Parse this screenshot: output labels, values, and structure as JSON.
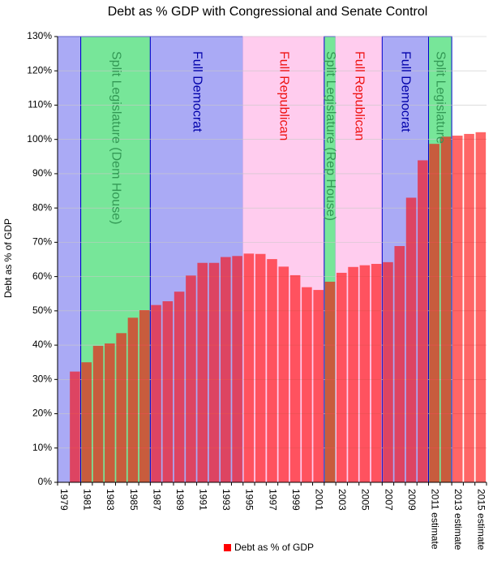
{
  "chart_data": {
    "type": "bar",
    "title": "Debt as % GDP with Congressional and Senate Control",
    "xlabel": "",
    "ylabel": "Debt as % of GDP",
    "ylim": [
      0,
      130
    ],
    "y_ticks": [
      "0%",
      "10%",
      "20%",
      "30%",
      "40%",
      "50%",
      "60%",
      "70%",
      "80%",
      "90%",
      "100%",
      "110%",
      "120%",
      "130%"
    ],
    "x_tick_labels": [
      "1979",
      "1981",
      "1983",
      "1985",
      "1987",
      "1989",
      "1991",
      "1993",
      "1995",
      "1997",
      "1999",
      "2001",
      "2003",
      "2005",
      "2007",
      "2009",
      "2011 estimate",
      "2013 estimate",
      "2015 estimate"
    ],
    "categories": [
      "1979",
      "1980",
      "1981",
      "1982",
      "1983",
      "1984",
      "1985",
      "1986",
      "1987",
      "1988",
      "1989",
      "1990",
      "1991",
      "1992",
      "1993",
      "1994",
      "1995",
      "1996",
      "1997",
      "1998",
      "1999",
      "2000",
      "2001",
      "2002",
      "2003",
      "2004",
      "2005",
      "2006",
      "2007",
      "2008",
      "2009",
      "2010",
      "2011 estimate",
      "2012 estimate",
      "2013 estimate",
      "2014 estimate",
      "2015 estimate"
    ],
    "values": [
      0,
      32.3,
      35,
      39.8,
      40.5,
      43.5,
      48,
      50.2,
      51.7,
      52.8,
      55.6,
      60.3,
      64,
      64,
      65.7,
      66,
      66.7,
      66.6,
      65.1,
      62.9,
      60.4,
      56.9,
      56.1,
      58.5,
      61.1,
      62.8,
      63.3,
      63.7,
      64.2,
      68.9,
      83,
      93.9,
      98.7,
      100.8,
      101.1,
      101.6,
      102.1
    ],
    "series_name": "Debt as % of GDP",
    "series_color": "#ff0000",
    "legend_position": "bottom",
    "control_periods": [
      {
        "label": "",
        "party": "democrat",
        "start": "1979",
        "end": "1980"
      },
      {
        "label": "Split Legislature (Dem House)",
        "party": "split",
        "start": "1981",
        "end": "1986"
      },
      {
        "label": "Full Democrat",
        "party": "democrat",
        "start": "1987",
        "end": "1994"
      },
      {
        "label": "Full Republican",
        "party": "republican",
        "start": "1995",
        "end": "2001"
      },
      {
        "label": "Split Legislature (Rep House)",
        "party": "split",
        "start": "2002",
        "end": "2002"
      },
      {
        "label": "Full Republican",
        "party": "republican",
        "start": "2003",
        "end": "2006"
      },
      {
        "label": "Full Democrat",
        "party": "democrat",
        "start": "2007",
        "end": "2010"
      },
      {
        "label": "Split Legislature",
        "party": "split",
        "start": "2011 estimate",
        "end": "2012 estimate"
      }
    ],
    "party_colors": {
      "democrat": "#aaaaf5",
      "democrat_border": "#0000cc",
      "democrat_text": "#0000aa",
      "republican": "#ffccee",
      "republican_border": "#ffccee",
      "republican_text": "#ee1111",
      "split": "#77e699",
      "split_border": "#0000cc",
      "split_text": "#339955"
    }
  }
}
